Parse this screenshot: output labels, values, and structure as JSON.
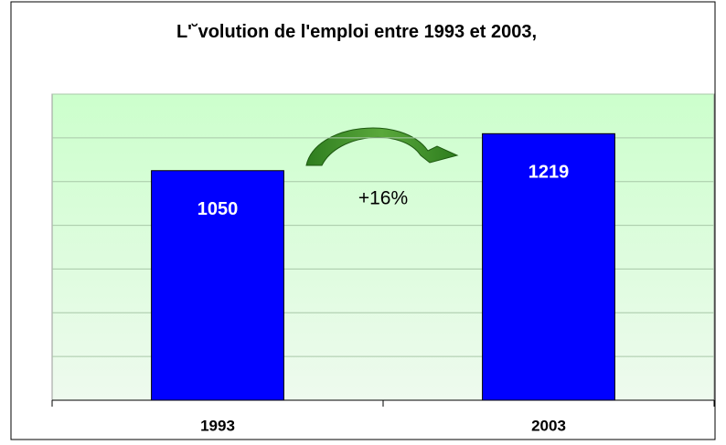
{
  "chart_data": {
    "type": "bar",
    "title": "L'˘volution de l'emploi entre 1993 et 2003,",
    "categories": [
      "1993",
      "2003"
    ],
    "values": [
      1050,
      1219
    ],
    "color": "#0000ff",
    "ylim": [
      0,
      1400
    ],
    "yticks": [
      0,
      200,
      400,
      600,
      800,
      1000,
      1200,
      1400
    ],
    "grid": true,
    "annotation": "+16%"
  }
}
